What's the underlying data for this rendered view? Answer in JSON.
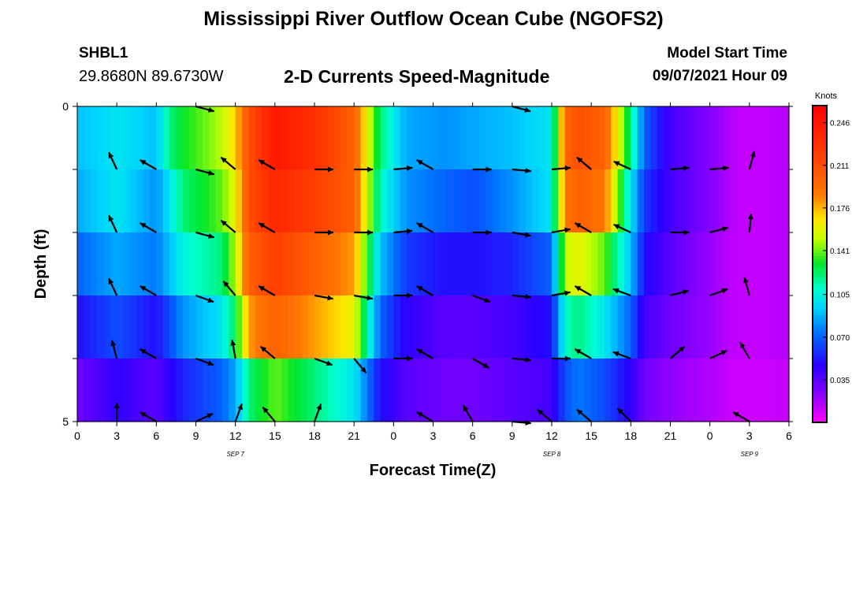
{
  "header": {
    "main_title": "Mississippi River Outflow Ocean Cube (NGOFS2)",
    "station_id": "SHBL1",
    "station_coords": "29.8680N  89.6730W",
    "subtitle": "2-D Currents Speed-Magnitude",
    "start_label": "Model Start Time",
    "start_value": "09/07/2021 Hour 09"
  },
  "footer": {
    "title": "Mississippi River Outflow Ocean Cube (NGOFS2)"
  },
  "chart_data": {
    "type": "heatmap",
    "xlabel": "Forecast Time(Z)",
    "ylabel": "Depth (ft)",
    "x_ticks": [
      "0",
      "3",
      "6",
      "9",
      "12",
      "15",
      "18",
      "21",
      "0",
      "3",
      "6",
      "9",
      "12",
      "15",
      "18",
      "21",
      "0",
      "3",
      "6"
    ],
    "y_ticks": [
      "0",
      "5"
    ],
    "date_labels": [
      {
        "label": "SEP 7",
        "hour": 12
      },
      {
        "label": "SEP 8",
        "hour": 36
      },
      {
        "label": "SEP 9",
        "hour": 51
      }
    ],
    "x_range_hours": [
      0,
      54
    ],
    "y_range_ft": [
      0,
      5
    ],
    "colorbar": {
      "unit": "Knots",
      "ticks": [
        "0.246",
        "0.211",
        "0.176",
        "0.141",
        "0.105",
        "0.070",
        "0.035"
      ],
      "tick_values": [
        0.246,
        0.211,
        0.176,
        0.141,
        0.105,
        0.07,
        0.035
      ],
      "range": [
        0.0,
        0.26
      ]
    },
    "depth_layers": 5,
    "speed_keyframes": {
      "hours": [
        0,
        3,
        6,
        7,
        8,
        11,
        12,
        13,
        15,
        18,
        21,
        23,
        25,
        28,
        30,
        33,
        36,
        37,
        38,
        40,
        42,
        43,
        45,
        48,
        50,
        52,
        54
      ],
      "layers": [
        [
          0.09,
          0.1,
          0.09,
          0.12,
          0.13,
          0.15,
          0.17,
          0.21,
          0.245,
          0.23,
          0.2,
          0.12,
          0.085,
          0.08,
          0.085,
          0.09,
          0.1,
          0.2,
          0.21,
          0.2,
          0.12,
          0.07,
          0.04,
          0.025,
          0.012,
          0.012,
          0.015
        ],
        [
          0.085,
          0.1,
          0.08,
          0.1,
          0.12,
          0.14,
          0.16,
          0.21,
          0.235,
          0.22,
          0.2,
          0.11,
          0.08,
          0.07,
          0.065,
          0.08,
          0.1,
          0.19,
          0.2,
          0.19,
          0.1,
          0.06,
          0.04,
          0.025,
          0.012,
          0.012,
          0.015
        ],
        [
          0.07,
          0.085,
          0.075,
          0.09,
          0.105,
          0.12,
          0.15,
          0.2,
          0.22,
          0.2,
          0.18,
          0.09,
          0.06,
          0.05,
          0.05,
          0.055,
          0.07,
          0.15,
          0.16,
          0.14,
          0.09,
          0.05,
          0.035,
          0.02,
          0.012,
          0.012,
          0.015
        ],
        [
          0.05,
          0.065,
          0.05,
          0.065,
          0.08,
          0.1,
          0.125,
          0.18,
          0.2,
          0.18,
          0.16,
          0.07,
          0.045,
          0.035,
          0.035,
          0.04,
          0.05,
          0.11,
          0.12,
          0.1,
          0.07,
          0.04,
          0.03,
          0.02,
          0.012,
          0.012,
          0.015
        ],
        [
          0.03,
          0.045,
          0.035,
          0.045,
          0.055,
          0.07,
          0.085,
          0.12,
          0.14,
          0.12,
          0.1,
          0.05,
          0.035,
          0.03,
          0.03,
          0.035,
          0.04,
          0.065,
          0.075,
          0.065,
          0.045,
          0.03,
          0.022,
          0.015,
          0.01,
          0.01,
          0.012
        ]
      ]
    },
    "vector_hours": [
      3,
      6,
      9,
      12,
      15,
      18,
      21,
      24,
      27,
      30,
      33,
      36,
      39,
      42,
      45,
      48,
      51
    ],
    "vector_depth_ft": [
      0,
      1,
      2,
      3,
      4,
      5
    ],
    "vector_directions_deg": [
      [
        null,
        null,
        105,
        null,
        null,
        null,
        null,
        null,
        null,
        null,
        105,
        null,
        null,
        null,
        null,
        null,
        null
      ],
      [
        335,
        300,
        105,
        310,
        300,
        90,
        90,
        85,
        300,
        90,
        95,
        85,
        310,
        295,
        85,
        85,
        15
      ],
      [
        335,
        300,
        105,
        310,
        300,
        90,
        90,
        85,
        300,
        90,
        100,
        80,
        300,
        295,
        90,
        75,
        5
      ],
      [
        335,
        300,
        110,
        320,
        300,
        100,
        100,
        90,
        300,
        110,
        95,
        80,
        300,
        290,
        75,
        70,
        345
      ],
      [
        345,
        300,
        110,
        350,
        310,
        110,
        140,
        90,
        300,
        120,
        95,
        90,
        300,
        290,
        50,
        65,
        330
      ],
      [
        0,
        300,
        65,
        20,
        320,
        20,
        null,
        null,
        300,
        330,
        95,
        310,
        310,
        315,
        null,
        null,
        300
      ]
    ]
  }
}
